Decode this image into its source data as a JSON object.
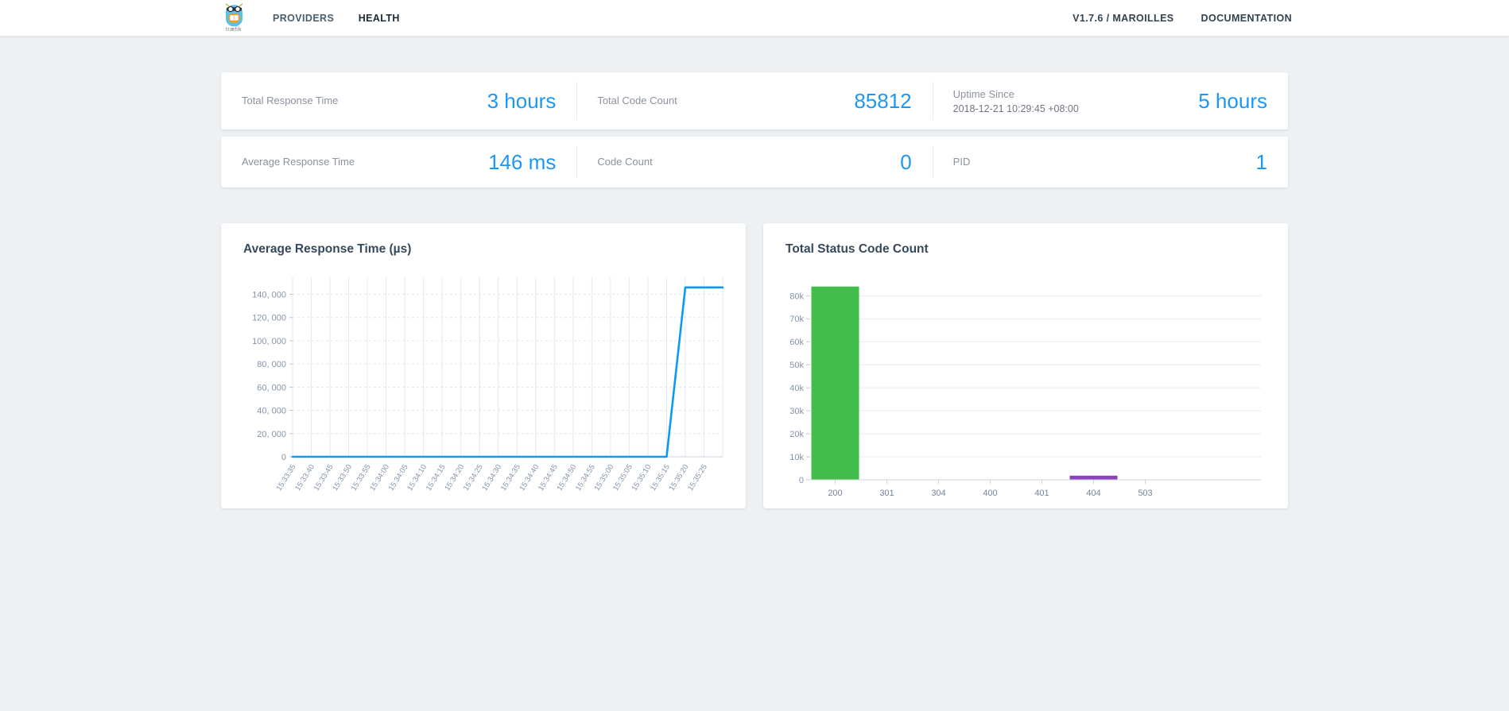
{
  "navbar": {
    "logo_text": "træfik",
    "items": [
      {
        "label": "PROVIDERS",
        "active": false
      },
      {
        "label": "HEALTH",
        "active": true
      }
    ],
    "version": "V1.7.6 / MAROILLES",
    "documentation_label": "DOCUMENTATION"
  },
  "stats": [
    {
      "label": "Total Response Time",
      "value": "3 hours"
    },
    {
      "label": "Total Code Count",
      "value": "85812"
    },
    {
      "label": "Uptime Since",
      "sublabel": "2018-12-21 10:29:45 +08:00",
      "value": "5 hours"
    },
    {
      "label": "Average Response Time",
      "value": "146 ms"
    },
    {
      "label": "Code Count",
      "value": "0"
    },
    {
      "label": "PID",
      "value": "1"
    }
  ],
  "chart_data": [
    {
      "type": "line",
      "title": "Average Response Time (µs)",
      "x": [
        "15:33:35",
        "15:33:40",
        "15:33:45",
        "15:33:50",
        "15:33:55",
        "15:34:00",
        "15:34:05",
        "15:34:10",
        "15:34:15",
        "15:34:20",
        "15:34:25",
        "15:34:30",
        "15:34:35",
        "15:34:40",
        "15:34:45",
        "15:34:50",
        "15:34:55",
        "15:35:00",
        "15:35:05",
        "15:35:10",
        "15:35:15",
        "15:35:20",
        "15:35:25"
      ],
      "values": [
        0,
        0,
        0,
        0,
        0,
        0,
        0,
        0,
        0,
        0,
        0,
        0,
        0,
        0,
        0,
        0,
        0,
        0,
        0,
        0,
        0,
        146000,
        146000
      ],
      "y_ticks": [
        0,
        20000,
        40000,
        60000,
        80000,
        100000,
        120000,
        140000
      ],
      "y_tick_labels": [
        "0",
        "20, 000",
        "40, 000",
        "60, 000",
        "80, 000",
        "100, 000",
        "120, 000",
        "140, 000"
      ],
      "ylim": [
        0,
        152000
      ],
      "line_color": "#0d98f4",
      "grid": true,
      "legend": "none"
    },
    {
      "type": "bar",
      "title": "Total Status Code Count",
      "categories": [
        "200",
        "301",
        "304",
        "400",
        "401",
        "404",
        "503"
      ],
      "values": [
        84000,
        0,
        0,
        0,
        0,
        1812,
        0
      ],
      "bar_colors": [
        "#42bc4a",
        null,
        null,
        null,
        null,
        "#8a42bd",
        null
      ],
      "y_ticks": [
        0,
        10000,
        20000,
        30000,
        40000,
        50000,
        60000,
        70000,
        80000
      ],
      "y_tick_labels": [
        "0",
        "10k",
        "20k",
        "30k",
        "40k",
        "50k",
        "60k",
        "70k",
        "80k"
      ],
      "ylim": [
        0,
        87000
      ],
      "grid": true,
      "legend": "none"
    }
  ],
  "colors": {
    "accent_blue": "#1d97f4",
    "line_blue": "#0d98f4",
    "bar_green": "#42bc4a",
    "bar_purple": "#8a42bd",
    "background": "#eef1f4"
  }
}
